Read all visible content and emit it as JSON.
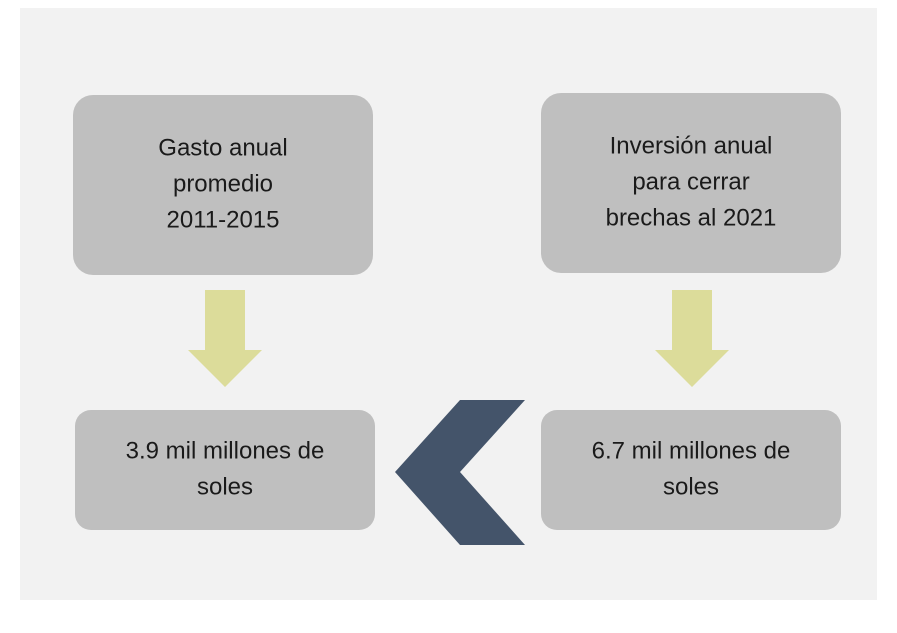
{
  "nodes": [
    {
      "lines": [
        "Gasto anual",
        "promedio",
        "2011-2015"
      ]
    },
    {
      "lines": [
        "Inversión anual",
        "para cerrar",
        "brechas al 2021"
      ]
    },
    {
      "lines": [
        "3.9 mil millones de",
        "soles"
      ]
    },
    {
      "lines": [
        "6.7 mil millones de",
        "soles"
      ]
    }
  ]
}
